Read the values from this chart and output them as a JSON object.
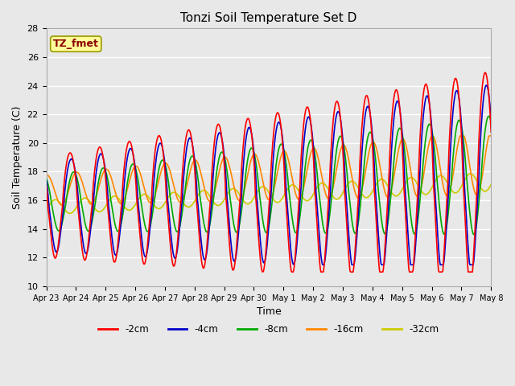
{
  "title": "Tonzi Soil Temperature Set D",
  "xlabel": "Time",
  "ylabel": "Soil Temperature (C)",
  "ylim": [
    10,
    28
  ],
  "yticks": [
    10,
    12,
    14,
    16,
    18,
    20,
    22,
    24,
    26,
    28
  ],
  "annotation_text": "TZ_fmet",
  "annotation_color": "#8B0000",
  "annotation_bg": "#FFFF99",
  "annotation_border": "#999900",
  "line_colors": {
    "-2cm": "#FF0000",
    "-4cm": "#0000CC",
    "-8cm": "#00AA00",
    "-16cm": "#FF8800",
    "-32cm": "#CCCC00"
  },
  "background_color": "#E8E8E8",
  "plot_bg_color": "#E8E8E8",
  "grid_color": "#FFFFFF",
  "x_tick_labels": [
    "Apr 23",
    "Apr 24",
    "Apr 25",
    "Apr 26",
    "Apr 27",
    "Apr 28",
    "Apr 29",
    "Apr 30",
    "May 1",
    "May 2",
    "May 3",
    "May 4",
    "May 5",
    "May 6",
    "May 7",
    "May 8"
  ]
}
